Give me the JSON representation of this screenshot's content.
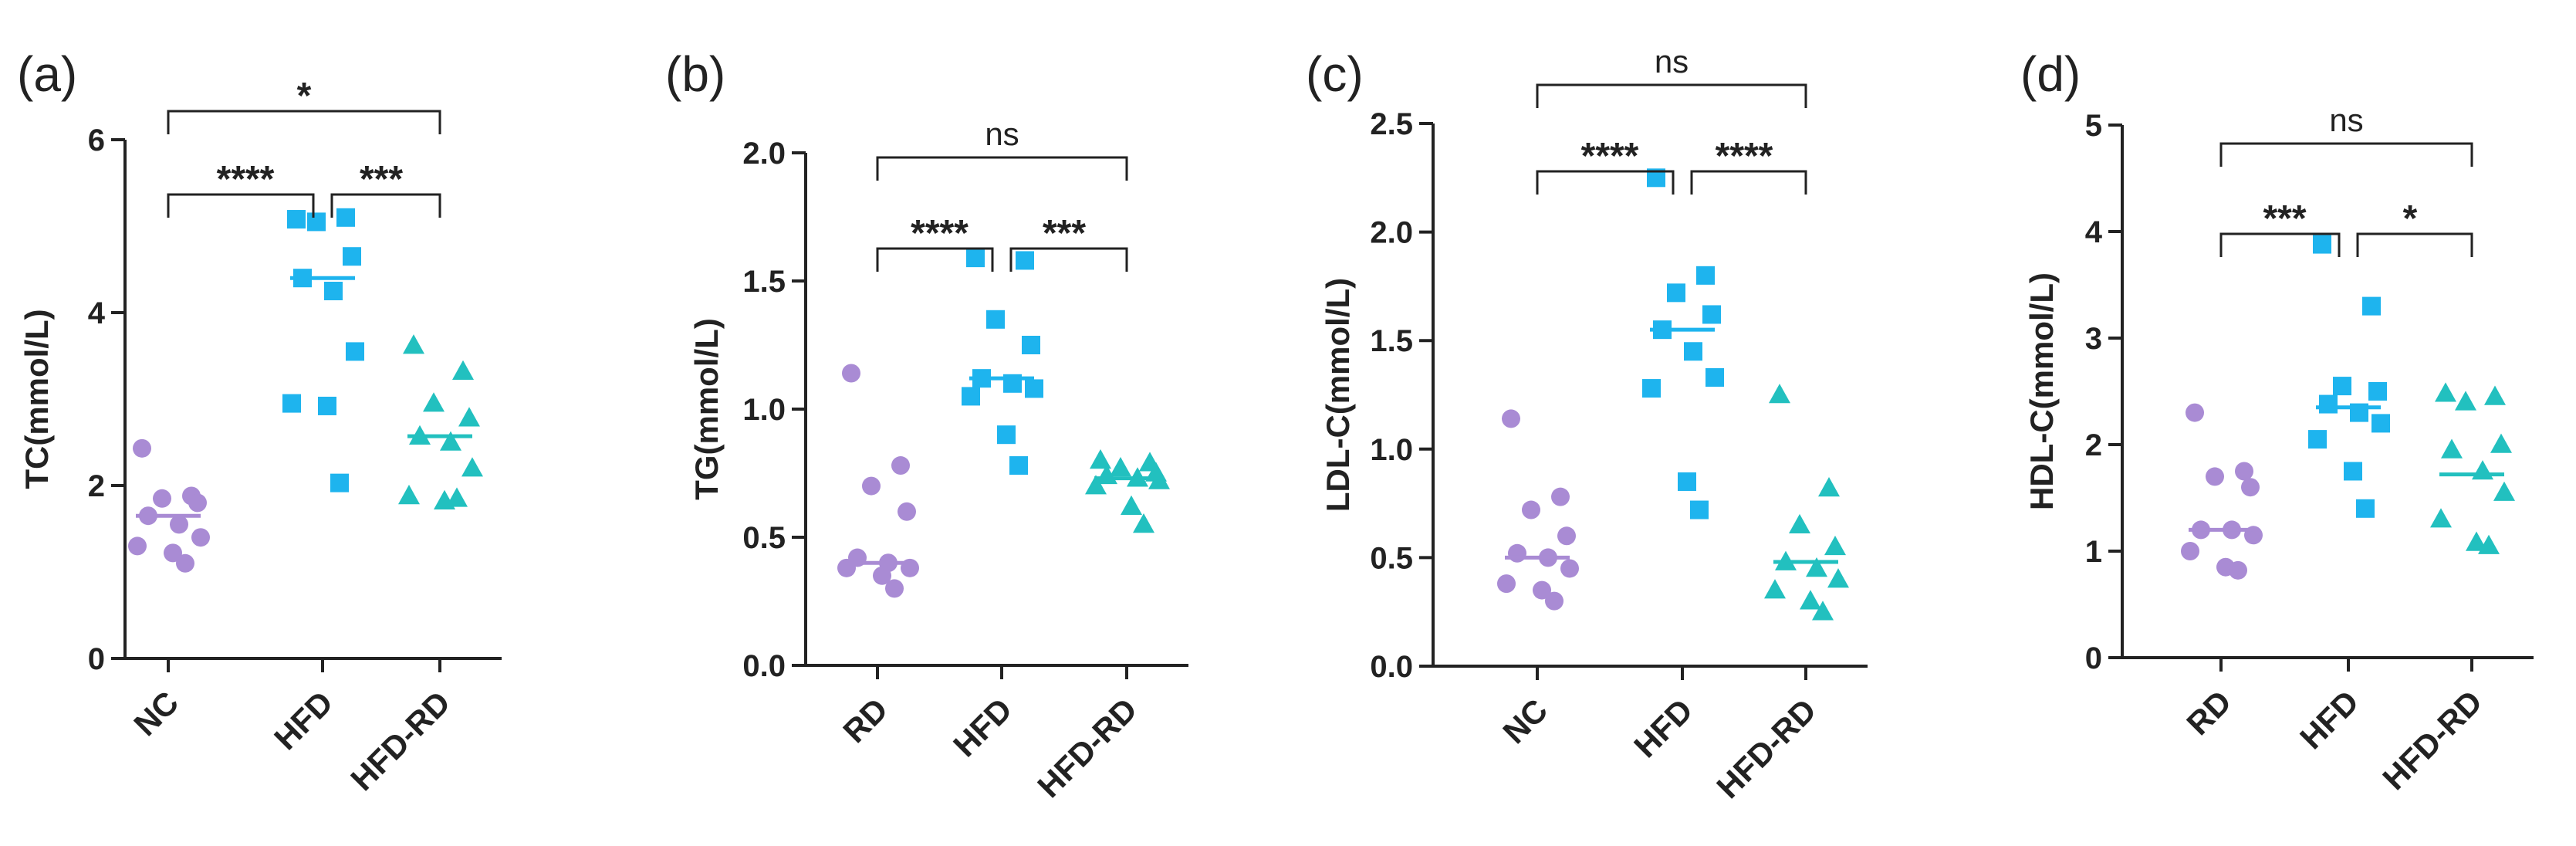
{
  "colors": {
    "RD": "#a98bd4",
    "NC": "#a98bd4",
    "HFD": "#1eb4ee",
    "HFD-RD": "#22c0bf"
  },
  "chart_data": [
    {
      "type": "scatter",
      "panel": "(a)",
      "ylabel": "TC(mmol/L)",
      "ylim": [
        0,
        6
      ],
      "yticks": [
        "0",
        "2",
        "4",
        "6"
      ],
      "categories": [
        "NC",
        "HFD",
        "HFD-RD"
      ],
      "series": [
        {
          "name": "NC",
          "marker": "circle",
          "mean": 1.65,
          "values": [
            2.43,
            1.88,
            1.85,
            1.8,
            1.65,
            1.55,
            1.4,
            1.3,
            1.22,
            1.1
          ]
        },
        {
          "name": "HFD",
          "marker": "square",
          "mean": 4.4,
          "values": [
            5.08,
            5.1,
            5.05,
            4.65,
            4.4,
            4.25,
            3.55,
            2.95,
            2.92,
            2.03
          ]
        },
        {
          "name": "HFD-RD",
          "marker": "triangle",
          "mean": 2.57,
          "values": [
            3.62,
            3.32,
            2.95,
            2.78,
            2.57,
            2.5,
            2.2,
            1.88,
            1.82,
            1.85
          ]
        }
      ],
      "comparisons": [
        {
          "from": "NC",
          "to": "HFD",
          "label": "****"
        },
        {
          "from": "HFD",
          "to": "HFD-RD",
          "label": "***"
        },
        {
          "from": "NC",
          "to": "HFD-RD",
          "label": "*"
        }
      ]
    },
    {
      "type": "scatter",
      "panel": "(b)",
      "ylabel": "TG(mmol/L)",
      "ylim": [
        0,
        2
      ],
      "yticks": [
        "0.0",
        "0.5",
        "1.0",
        "1.5",
        "2.0"
      ],
      "categories": [
        "RD",
        "HFD",
        "HFD-RD"
      ],
      "series": [
        {
          "name": "RD",
          "marker": "circle",
          "mean": 0.4,
          "values": [
            1.14,
            0.78,
            0.7,
            0.6,
            0.42,
            0.4,
            0.38,
            0.38,
            0.35,
            0.3
          ]
        },
        {
          "name": "HFD",
          "marker": "square",
          "mean": 1.12,
          "values": [
            1.59,
            1.58,
            1.35,
            1.25,
            1.12,
            1.1,
            1.08,
            1.05,
            0.9,
            0.78
          ]
        },
        {
          "name": "HFD-RD",
          "marker": "triangle",
          "mean": 0.73,
          "values": [
            0.8,
            0.79,
            0.77,
            0.75,
            0.74,
            0.73,
            0.72,
            0.7,
            0.62,
            0.55
          ]
        }
      ],
      "comparisons": [
        {
          "from": "RD",
          "to": "HFD",
          "label": "****"
        },
        {
          "from": "HFD",
          "to": "HFD-RD",
          "label": "***"
        },
        {
          "from": "RD",
          "to": "HFD-RD",
          "label": "ns"
        }
      ]
    },
    {
      "type": "scatter",
      "panel": "(c)",
      "ylabel": "LDL-C(mmol/L)",
      "ylim": [
        0,
        2.5
      ],
      "yticks": [
        "0.0",
        "0.5",
        "1.0",
        "1.5",
        "2.0",
        "2.5"
      ],
      "categories": [
        "NC",
        "HFD",
        "HFD-RD"
      ],
      "series": [
        {
          "name": "NC",
          "marker": "circle",
          "mean": 0.5,
          "values": [
            1.14,
            0.78,
            0.72,
            0.6,
            0.52,
            0.5,
            0.45,
            0.38,
            0.35,
            0.3
          ]
        },
        {
          "name": "HFD",
          "marker": "square",
          "mean": 1.55,
          "values": [
            2.25,
            1.8,
            1.72,
            1.62,
            1.55,
            1.45,
            1.33,
            1.28,
            0.85,
            0.72
          ]
        },
        {
          "name": "HFD-RD",
          "marker": "triangle",
          "mean": 0.48,
          "values": [
            1.25,
            0.82,
            0.65,
            0.55,
            0.48,
            0.45,
            0.4,
            0.35,
            0.3,
            0.25
          ]
        }
      ],
      "comparisons": [
        {
          "from": "NC",
          "to": "HFD",
          "label": "****"
        },
        {
          "from": "HFD",
          "to": "HFD-RD",
          "label": "****"
        },
        {
          "from": "NC",
          "to": "HFD-RD",
          "label": "ns"
        }
      ]
    },
    {
      "type": "scatter",
      "panel": "(d)",
      "ylabel": "HDL-C(mmol/L)",
      "ylim": [
        0,
        5
      ],
      "yticks": [
        "0",
        "1",
        "2",
        "3",
        "4",
        "5"
      ],
      "categories": [
        "RD",
        "HFD",
        "HFD-RD"
      ],
      "series": [
        {
          "name": "RD",
          "marker": "circle",
          "mean": 1.2,
          "values": [
            2.3,
            1.75,
            1.7,
            1.6,
            1.2,
            1.2,
            1.15,
            1.0,
            0.85,
            0.82
          ]
        },
        {
          "name": "HFD",
          "marker": "square",
          "mean": 2.35,
          "values": [
            3.88,
            3.3,
            2.55,
            2.5,
            2.38,
            2.3,
            2.2,
            2.05,
            1.75,
            1.4
          ]
        },
        {
          "name": "HFD-RD",
          "marker": "triangle",
          "mean": 1.72,
          "values": [
            2.48,
            2.45,
            2.4,
            2.0,
            1.95,
            1.75,
            1.55,
            1.3,
            1.08,
            1.05
          ]
        }
      ],
      "comparisons": [
        {
          "from": "RD",
          "to": "HFD",
          "label": "***"
        },
        {
          "from": "HFD",
          "to": "HFD-RD",
          "label": "*"
        },
        {
          "from": "RD",
          "to": "HFD-RD",
          "label": "ns"
        }
      ]
    }
  ]
}
